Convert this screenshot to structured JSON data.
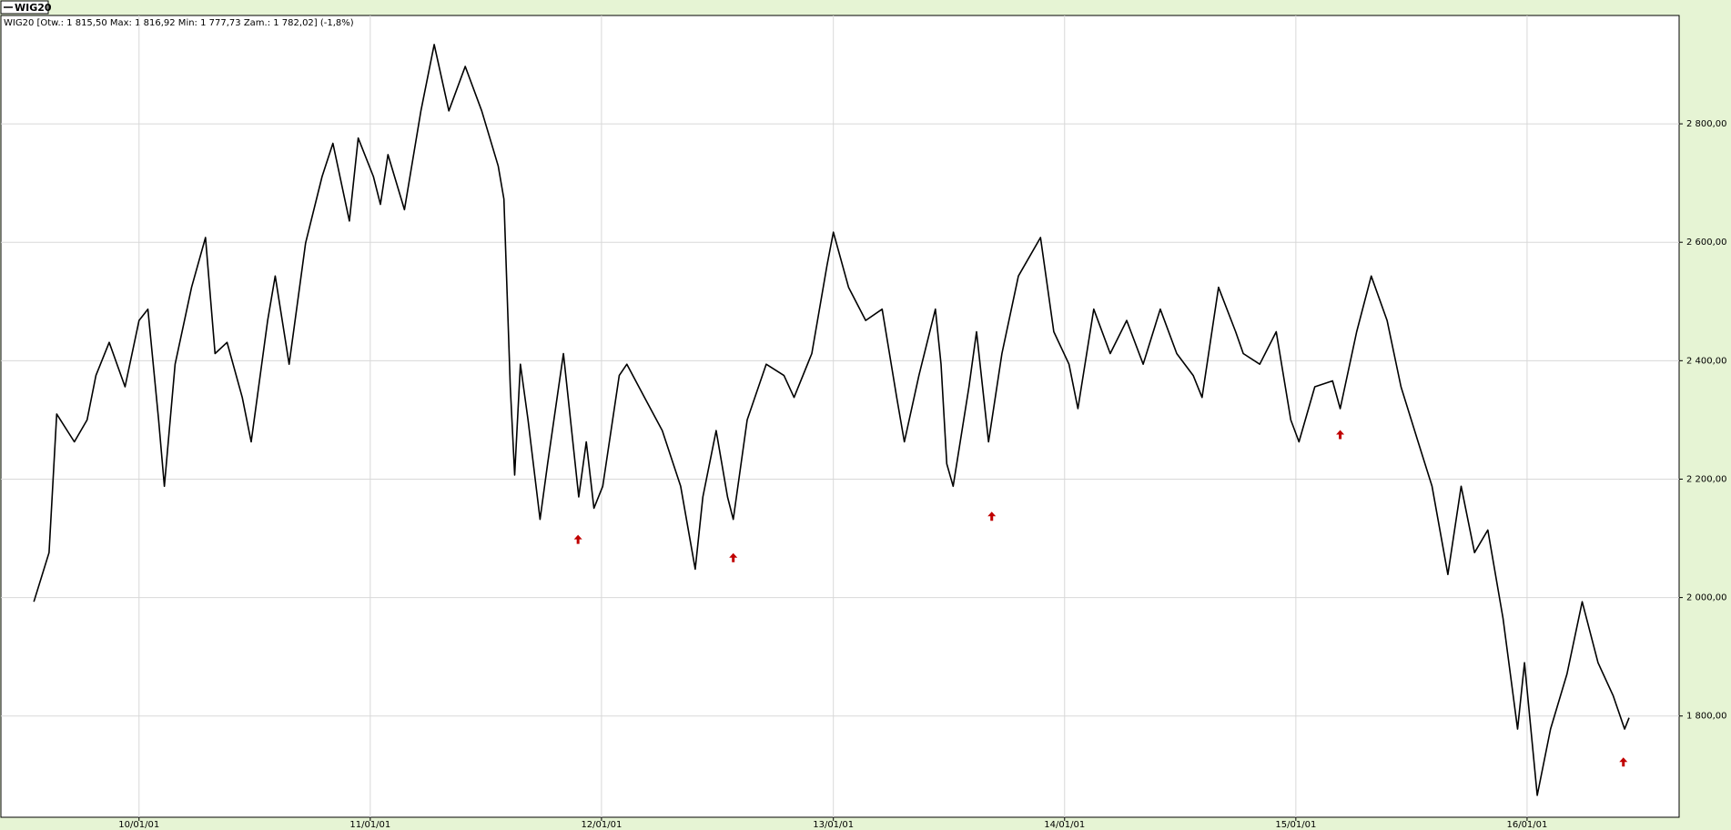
{
  "chart_data": {
    "type": "line",
    "subtitle": "WIG20 [Otw.: 1 815,50  Max: 1 816,92  Min: 1 777,73  Zam.: 1 782,02] (-1,8%)",
    "grid": true,
    "xlim": [
      "09/05/28",
      "16/08/28"
    ],
    "xticks": [
      "10/01/01",
      "11/01/01",
      "12/01/01",
      "13/01/01",
      "14/01/01",
      "15/01/01",
      "16/01/01"
    ],
    "ylim": [
      1629,
      2983
    ],
    "yticks": [
      {
        "value": 1800,
        "label": "1 800,00"
      },
      {
        "value": 2000,
        "label": "2 000,00"
      },
      {
        "value": 2200,
        "label": "2 200,00"
      },
      {
        "value": 2400,
        "label": "2 400,00"
      },
      {
        "value": 2600,
        "label": "2 600,00"
      },
      {
        "value": 2800,
        "label": "2 800,00"
      }
    ],
    "x": [
      "09/07/19",
      "09/08/12",
      "09/08/24",
      "09/09/21",
      "09/10/11",
      "09/10/25",
      "09/11/15",
      "09/12/10",
      "10/01/01",
      "10/01/15",
      "10/02/01",
      "10/02/10",
      "10/02/27",
      "10/03/25",
      "10/04/16",
      "10/05/01",
      "10/05/20",
      "10/06/13",
      "10/06/27",
      "10/07/23",
      "10/08/04",
      "10/08/26",
      "10/09/21",
      "10/10/17",
      "10/11/03",
      "10/11/29",
      "10/12/13",
      "11/01/06",
      "11/01/17",
      "11/01/29",
      "11/02/24",
      "11/03/22",
      "11/04/12",
      "11/05/05",
      "11/05/31",
      "11/06/26",
      "11/07/22",
      "11/07/31",
      "11/08/10",
      "11/08/17",
      "11/08/26",
      "11/09/07",
      "11/09/26",
      "11/10/08",
      "11/11/02",
      "11/11/26",
      "11/12/08",
      "11/12/20",
      "12/01/03",
      "12/01/29",
      "12/02/10",
      "12/03/09",
      "12/04/06",
      "12/05/05",
      "12/05/28",
      "12/06/09",
      "12/06/30",
      "12/07/18",
      "12/07/27",
      "12/08/18",
      "12/09/17",
      "12/10/15",
      "12/10/31",
      "12/11/28",
      "12/12/22",
      "13/01/01",
      "13/01/25",
      "13/02/21",
      "13/03/19",
      "13/04/11",
      "13/04/23",
      "13/05/16",
      "13/06/11",
      "13/06/20",
      "13/06/29",
      "13/07/09",
      "13/08/03",
      "13/08/15",
      "13/09/03",
      "13/09/24",
      "13/10/20",
      "13/11/24",
      "13/12/15",
      "14/01/08",
      "14/01/22",
      "14/02/16",
      "14/03/14",
      "14/04/09",
      "14/05/05",
      "14/06/01",
      "14/06/27",
      "14/07/23",
      "14/08/06",
      "14/09/01",
      "14/09/28",
      "14/10/10",
      "14/11/05",
      "14/12/01",
      "14/12/24",
      "15/01/06",
      "15/01/31",
      "15/02/28",
      "15/03/12",
      "15/04/07",
      "15/04/30",
      "15/05/25",
      "15/06/16",
      "15/07/13",
      "15/08/04",
      "15/08/29",
      "15/09/19",
      "15/10/10",
      "15/10/31",
      "15/11/24",
      "15/12/17",
      "15/12/28",
      "16/01/17",
      "16/02/07",
      "16/03/04",
      "16/03/28",
      "16/04/22",
      "16/05/16",
      "16/06/03",
      "16/06/10"
    ],
    "series": [
      {
        "name": "WIG20",
        "color": "#000000",
        "values": [
          1993,
          2076,
          2310,
          2263,
          2300,
          2375,
          2431,
          2356,
          2468,
          2487,
          2300,
          2188,
          2394,
          2524,
          2608,
          2412,
          2431,
          2338,
          2263,
          2468,
          2543,
          2394,
          2599,
          2711,
          2767,
          2636,
          2776,
          2711,
          2664,
          2748,
          2655,
          2822,
          2934,
          2822,
          2897,
          2822,
          2729,
          2673,
          2356,
          2207,
          2394,
          2300,
          2132,
          2226,
          2412,
          2170,
          2263,
          2151,
          2188,
          2375,
          2394,
          2338,
          2282,
          2188,
          2048,
          2170,
          2282,
          2170,
          2132,
          2300,
          2394,
          2375,
          2338,
          2412,
          2561,
          2617,
          2524,
          2468,
          2487,
          2338,
          2263,
          2375,
          2487,
          2394,
          2226,
          2188,
          2356,
          2449,
          2263,
          2412,
          2543,
          2608,
          2449,
          2394,
          2319,
          2487,
          2412,
          2468,
          2394,
          2487,
          2412,
          2375,
          2338,
          2524,
          2449,
          2412,
          2394,
          2449,
          2300,
          2263,
          2356,
          2366,
          2319,
          2449,
          2543,
          2468,
          2356,
          2263,
          2188,
          2039,
          2188,
          2076,
          2114,
          1965,
          1778,
          1890,
          1666,
          1778,
          1871,
          1993,
          1890,
          1834,
          1778,
          1797
        ]
      }
    ],
    "signals": {
      "color": "#c00000",
      "x": [
        "11/11/25",
        "12/07/27",
        "13/09/08",
        "15/03/12",
        "16/06/01"
      ],
      "values": [
        2106,
        2075,
        2145,
        2283,
        1730
      ]
    }
  }
}
